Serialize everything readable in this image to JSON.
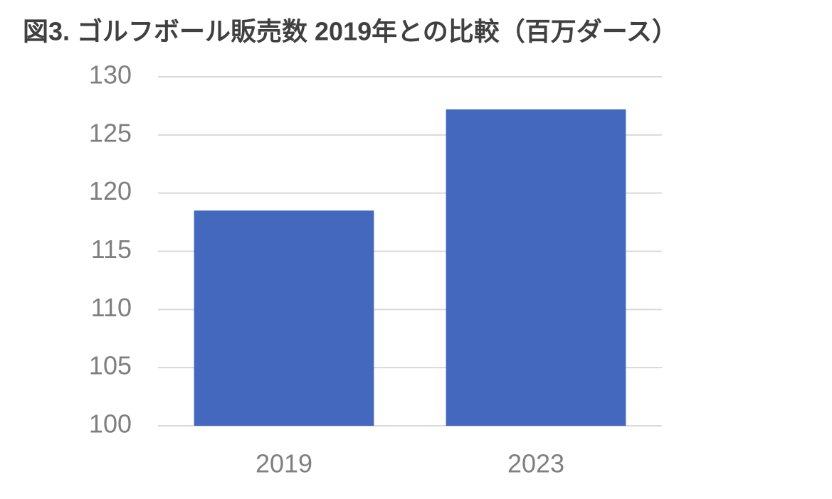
{
  "chart_data": {
    "type": "bar",
    "title": "図3. ゴルフボール販売数   2019年との比較（百万ダース）",
    "categories": [
      "2019",
      "2023"
    ],
    "values": [
      118.5,
      127.2
    ],
    "color": "#4468be",
    "ylim": [
      100,
      130
    ],
    "yticks": [
      100,
      105,
      110,
      115,
      120,
      125,
      130
    ],
    "grid": true
  }
}
